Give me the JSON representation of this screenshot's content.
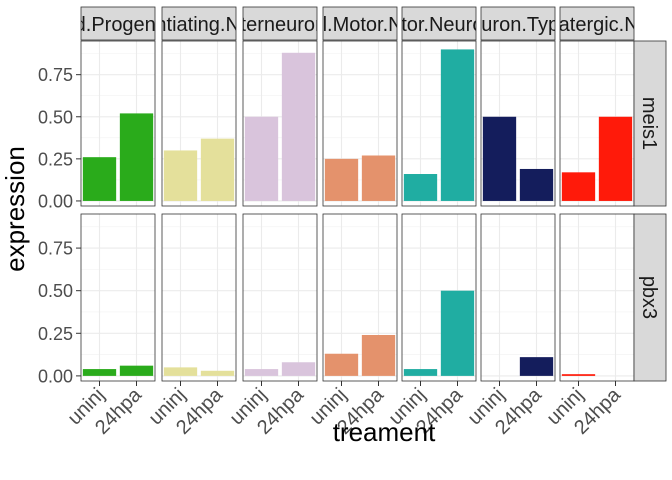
{
  "chart_data": {
    "type": "bar",
    "facet_layout": "grid",
    "xlabel": "treament",
    "ylabel": "expression",
    "categories": [
      "uninj",
      "24hpa"
    ],
    "ylim": [
      -0.03,
      0.95
    ],
    "yticks": [
      0.0,
      0.25,
      0.5,
      0.75
    ],
    "ytick_labels": [
      "0.00",
      "0.25",
      "0.50",
      "0.75"
    ],
    "grid": true,
    "column_strips": [
      "Cord.Progenitors",
      "Differentiating.Neurons",
      "Interneurons",
      "Visceral.Motor.Neurons",
      "Motor.Neurons",
      "Neuron.Types",
      "Glutamatergic.Neurons"
    ],
    "row_strips": [
      "meis1",
      "pbx3"
    ],
    "fill_colors": [
      "#2aab1b",
      "#e4e09b",
      "#d9c4dc",
      "#e4926c",
      "#20ada2",
      "#141d5c",
      "#ff1a0a"
    ],
    "values": {
      "meis1": [
        [
          0.26,
          0.52
        ],
        [
          0.3,
          0.37
        ],
        [
          0.5,
          0.88
        ],
        [
          0.25,
          0.27
        ],
        [
          0.16,
          0.9
        ],
        [
          0.5,
          0.19
        ],
        [
          0.17,
          0.5
        ]
      ],
      "pbx3": [
        [
          0.04,
          0.06
        ],
        [
          0.05,
          0.03
        ],
        [
          0.04,
          0.08
        ],
        [
          0.13,
          0.24
        ],
        [
          0.04,
          0.5
        ],
        [
          0.0,
          0.11
        ],
        [
          0.01,
          0.0
        ]
      ]
    }
  }
}
